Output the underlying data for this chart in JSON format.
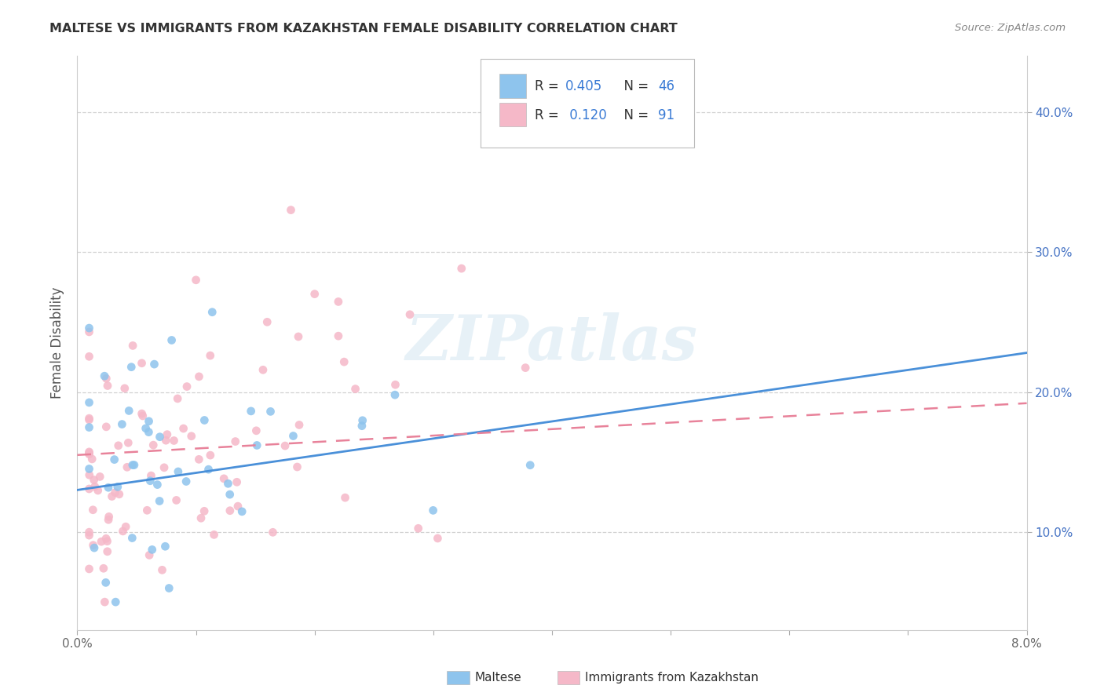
{
  "title": "MALTESE VS IMMIGRANTS FROM KAZAKHSTAN FEMALE DISABILITY CORRELATION CHART",
  "source": "Source: ZipAtlas.com",
  "ylabel": "Female Disability",
  "ytick_labels": [
    "10.0%",
    "20.0%",
    "30.0%",
    "40.0%"
  ],
  "ytick_values": [
    0.1,
    0.2,
    0.3,
    0.4
  ],
  "xlim": [
    0.0,
    0.08
  ],
  "ylim": [
    0.03,
    0.44
  ],
  "maltese_color": "#8EC4ED",
  "kazakhstan_color": "#F5B8C8",
  "maltese_trend_color": "#4A90D9",
  "kazakhstan_trend_color": "#E8829A",
  "watermark": "ZIPatlas",
  "background_color": "#FFFFFF",
  "grid_color": "#CCCCCC",
  "maltese_trend_x0": 0.0,
  "maltese_trend_y0": 0.13,
  "maltese_trend_x1": 0.08,
  "maltese_trend_y1": 0.228,
  "kaz_trend_x0": 0.0,
  "kaz_trend_y0": 0.155,
  "kaz_trend_x1": 0.08,
  "kaz_trend_y1": 0.192
}
